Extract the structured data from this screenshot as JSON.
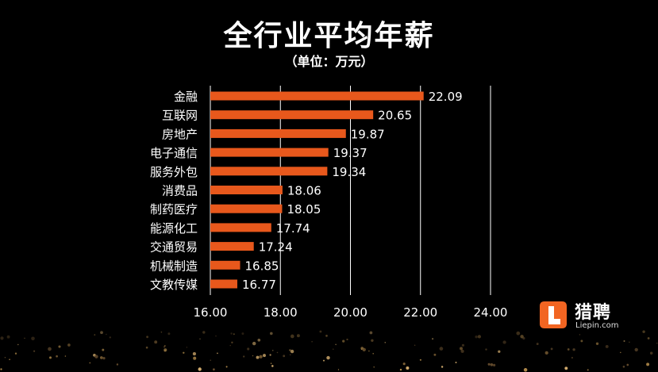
{
  "header": {
    "title": "全行业平均年薪",
    "unit": "（单位：万元）"
  },
  "logo": {
    "name": "猎聘",
    "domain": "Liepin.com"
  },
  "colors": {
    "bar": "#e8581c",
    "gridline": "#ffffff",
    "text": "#ffffff",
    "background": "#000000"
  },
  "chart_data": {
    "type": "bar",
    "orientation": "horizontal",
    "categories": [
      "金融",
      "互联网",
      "房地产",
      "电子通信",
      "服务外包",
      "消费品",
      "制药医疗",
      "能源化工",
      "交通贸易",
      "机械制造",
      "文教传媒"
    ],
    "values": [
      22.09,
      20.65,
      19.87,
      19.37,
      19.34,
      18.06,
      18.05,
      17.74,
      17.24,
      16.85,
      16.77
    ],
    "value_labels": [
      "22.09",
      "20.65",
      "19.87",
      "19.37",
      "19.34",
      "18.06",
      "18.05",
      "17.74",
      "17.24",
      "16.85",
      "16.77"
    ],
    "xlim": [
      16,
      24
    ],
    "xticks": [
      16,
      18,
      20,
      22,
      24
    ],
    "xtick_labels": [
      "16.00",
      "18.00",
      "20.00",
      "22.00",
      "24.00"
    ],
    "grid": true
  }
}
